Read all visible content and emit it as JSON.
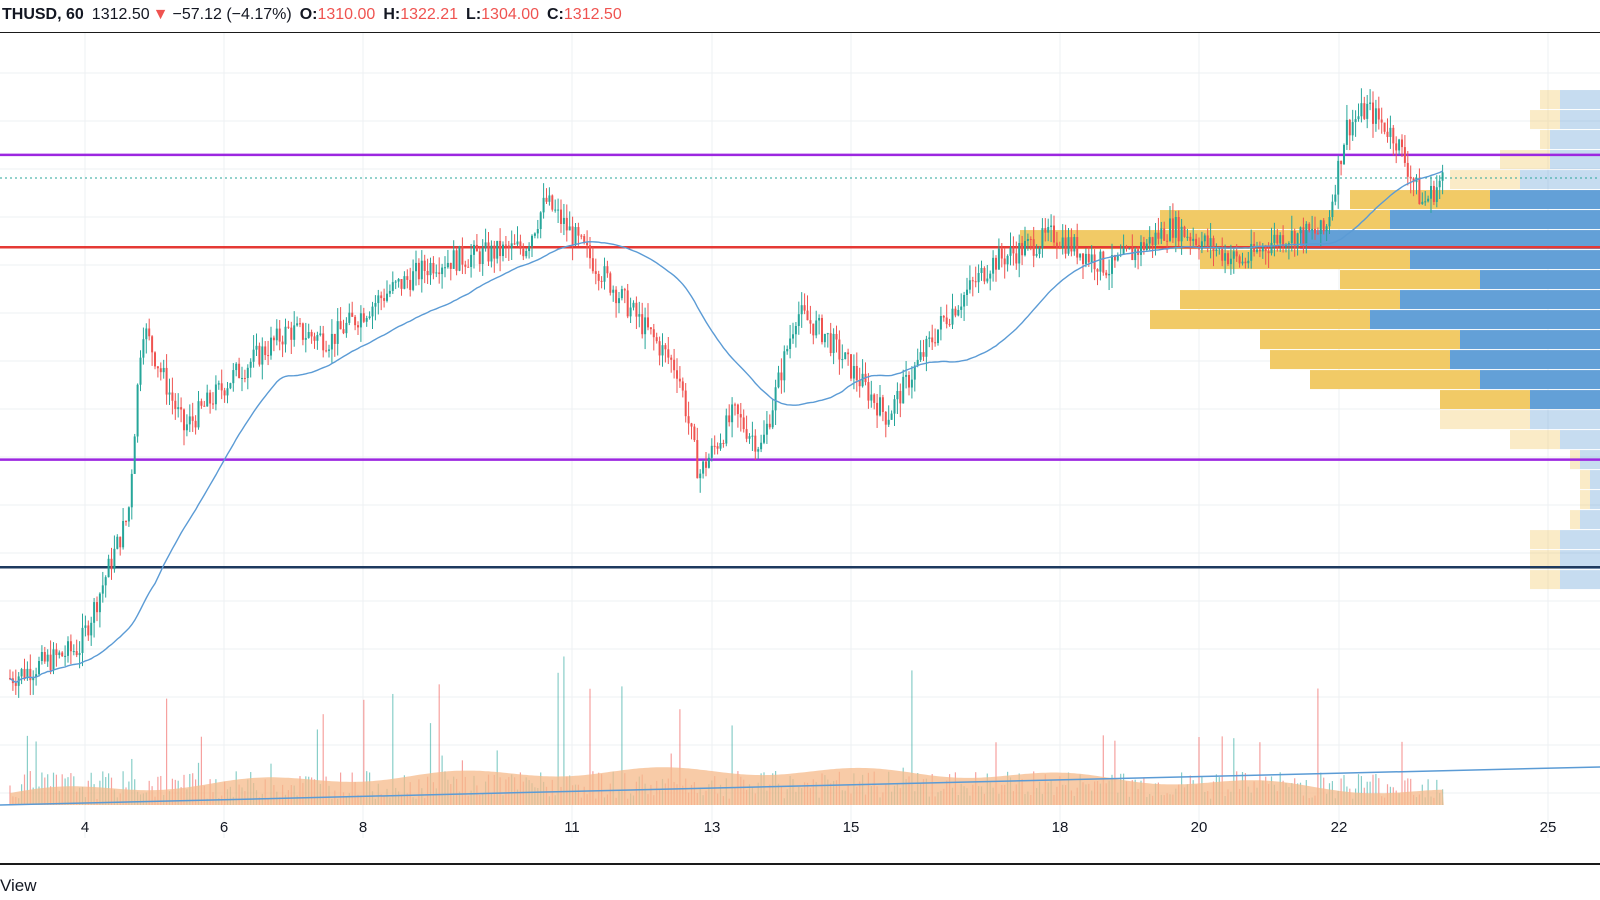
{
  "header": {
    "symbol": "THUSD, 60",
    "last": "1312.50",
    "change_arrow": "▼",
    "change": "−57.12 (−4.17%)",
    "o_label": "O:",
    "o_val": "1310.00",
    "h_label": "H:",
    "h_val": "1322.21",
    "l_label": "L:",
    "l_val": "1304.00",
    "c_label": "C:",
    "c_val": "1312.50"
  },
  "footer": {
    "view_label": "View"
  },
  "colors": {
    "up": "#26a69a",
    "down": "#ef5350",
    "ma": "#5b9bd5",
    "purple_line": "#9c27e0",
    "red_line": "#e53935",
    "navy_line": "#1e3a5f",
    "vp_buy": "#f0c75e",
    "vp_sell": "#5b9bd5",
    "vol_ma_fill": "#f5b98a",
    "grid": "#eef0f3"
  },
  "chart_data": {
    "type": "candlestick",
    "timeframe": "60",
    "x_ticks": [
      "4",
      "6",
      "8",
      "11",
      "13",
      "15",
      "18",
      "20",
      "22",
      "25"
    ],
    "path_points": [
      [
        0.0,
        1150
      ],
      [
        1.0,
        1160
      ],
      [
        1.7,
        1203
      ],
      [
        1.9,
        1265
      ],
      [
        2.5,
        1231
      ],
      [
        3.2,
        1248
      ],
      [
        4.0,
        1263
      ],
      [
        4.6,
        1260
      ],
      [
        5.4,
        1275
      ],
      [
        6.1,
        1285
      ],
      [
        7.4,
        1290
      ],
      [
        7.7,
        1305
      ],
      [
        9.6,
        1250
      ],
      [
        9.9,
        1216
      ],
      [
        10.4,
        1236
      ],
      [
        10.8,
        1225
      ],
      [
        11.3,
        1269
      ],
      [
        11.7,
        1262
      ],
      [
        12.6,
        1235
      ],
      [
        13.4,
        1266
      ],
      [
        14.1,
        1285
      ],
      [
        15.0,
        1294
      ],
      [
        15.8,
        1283
      ],
      [
        16.7,
        1297
      ],
      [
        17.7,
        1285
      ],
      [
        18.2,
        1293
      ],
      [
        18.9,
        1295
      ],
      [
        19.2,
        1329
      ],
      [
        19.5,
        1335
      ],
      [
        19.9,
        1326
      ],
      [
        20.3,
        1304
      ],
      [
        20.6,
        1312.5
      ]
    ],
    "price_range": [
      1125,
      1345
    ],
    "horizontal_levels": [
      {
        "price": 1320,
        "color": "purple"
      },
      {
        "price": 1290,
        "color": "red"
      },
      {
        "price": 1221,
        "color": "purple"
      },
      {
        "price": 1186,
        "color": "navy"
      }
    ],
    "last_price_line": 1312.5,
    "volume_profile": [
      {
        "price": 1338.0,
        "buy": 0.02,
        "sell": 0.04
      },
      {
        "price": 1331.5,
        "buy": 0.03,
        "sell": 0.04
      },
      {
        "price": 1325.0,
        "buy": 0.01,
        "sell": 0.05
      },
      {
        "price": 1318.5,
        "buy": 0.05,
        "sell": 0.05
      },
      {
        "price": 1312.0,
        "buy": 0.07,
        "sell": 0.08
      },
      {
        "price": 1305.5,
        "buy": 0.14,
        "sell": 0.11
      },
      {
        "price": 1299.0,
        "buy": 0.23,
        "sell": 0.21
      },
      {
        "price": 1292.5,
        "buy": 0.28,
        "sell": 0.3
      },
      {
        "price": 1286.0,
        "buy": 0.21,
        "sell": 0.19
      },
      {
        "price": 1279.5,
        "buy": 0.14,
        "sell": 0.12
      },
      {
        "price": 1273.0,
        "buy": 0.22,
        "sell": 0.2
      },
      {
        "price": 1266.5,
        "buy": 0.22,
        "sell": 0.23
      },
      {
        "price": 1260.0,
        "buy": 0.2,
        "sell": 0.14
      },
      {
        "price": 1253.5,
        "buy": 0.18,
        "sell": 0.15
      },
      {
        "price": 1247.0,
        "buy": 0.17,
        "sell": 0.12
      },
      {
        "price": 1240.5,
        "buy": 0.09,
        "sell": 0.07
      },
      {
        "price": 1234.0,
        "buy": 0.09,
        "sell": 0.07
      },
      {
        "price": 1227.5,
        "buy": 0.05,
        "sell": 0.04
      },
      {
        "price": 1221.0,
        "buy": 0.01,
        "sell": 0.02
      },
      {
        "price": 1214.5,
        "buy": 0.01,
        "sell": 0.01
      },
      {
        "price": 1208.0,
        "buy": 0.01,
        "sell": 0.01
      },
      {
        "price": 1201.5,
        "buy": 0.01,
        "sell": 0.02
      },
      {
        "price": 1195.0,
        "buy": 0.03,
        "sell": 0.04
      },
      {
        "price": 1188.5,
        "buy": 0.03,
        "sell": 0.04
      },
      {
        "price": 1182.0,
        "buy": 0.03,
        "sell": 0.04
      }
    ],
    "series": [
      {
        "name": "",
        "role": "moving-average",
        "color": "#5b9bd5"
      },
      {
        "name": "",
        "role": "volume"
      }
    ],
    "grid": true,
    "legend": "top-left"
  }
}
